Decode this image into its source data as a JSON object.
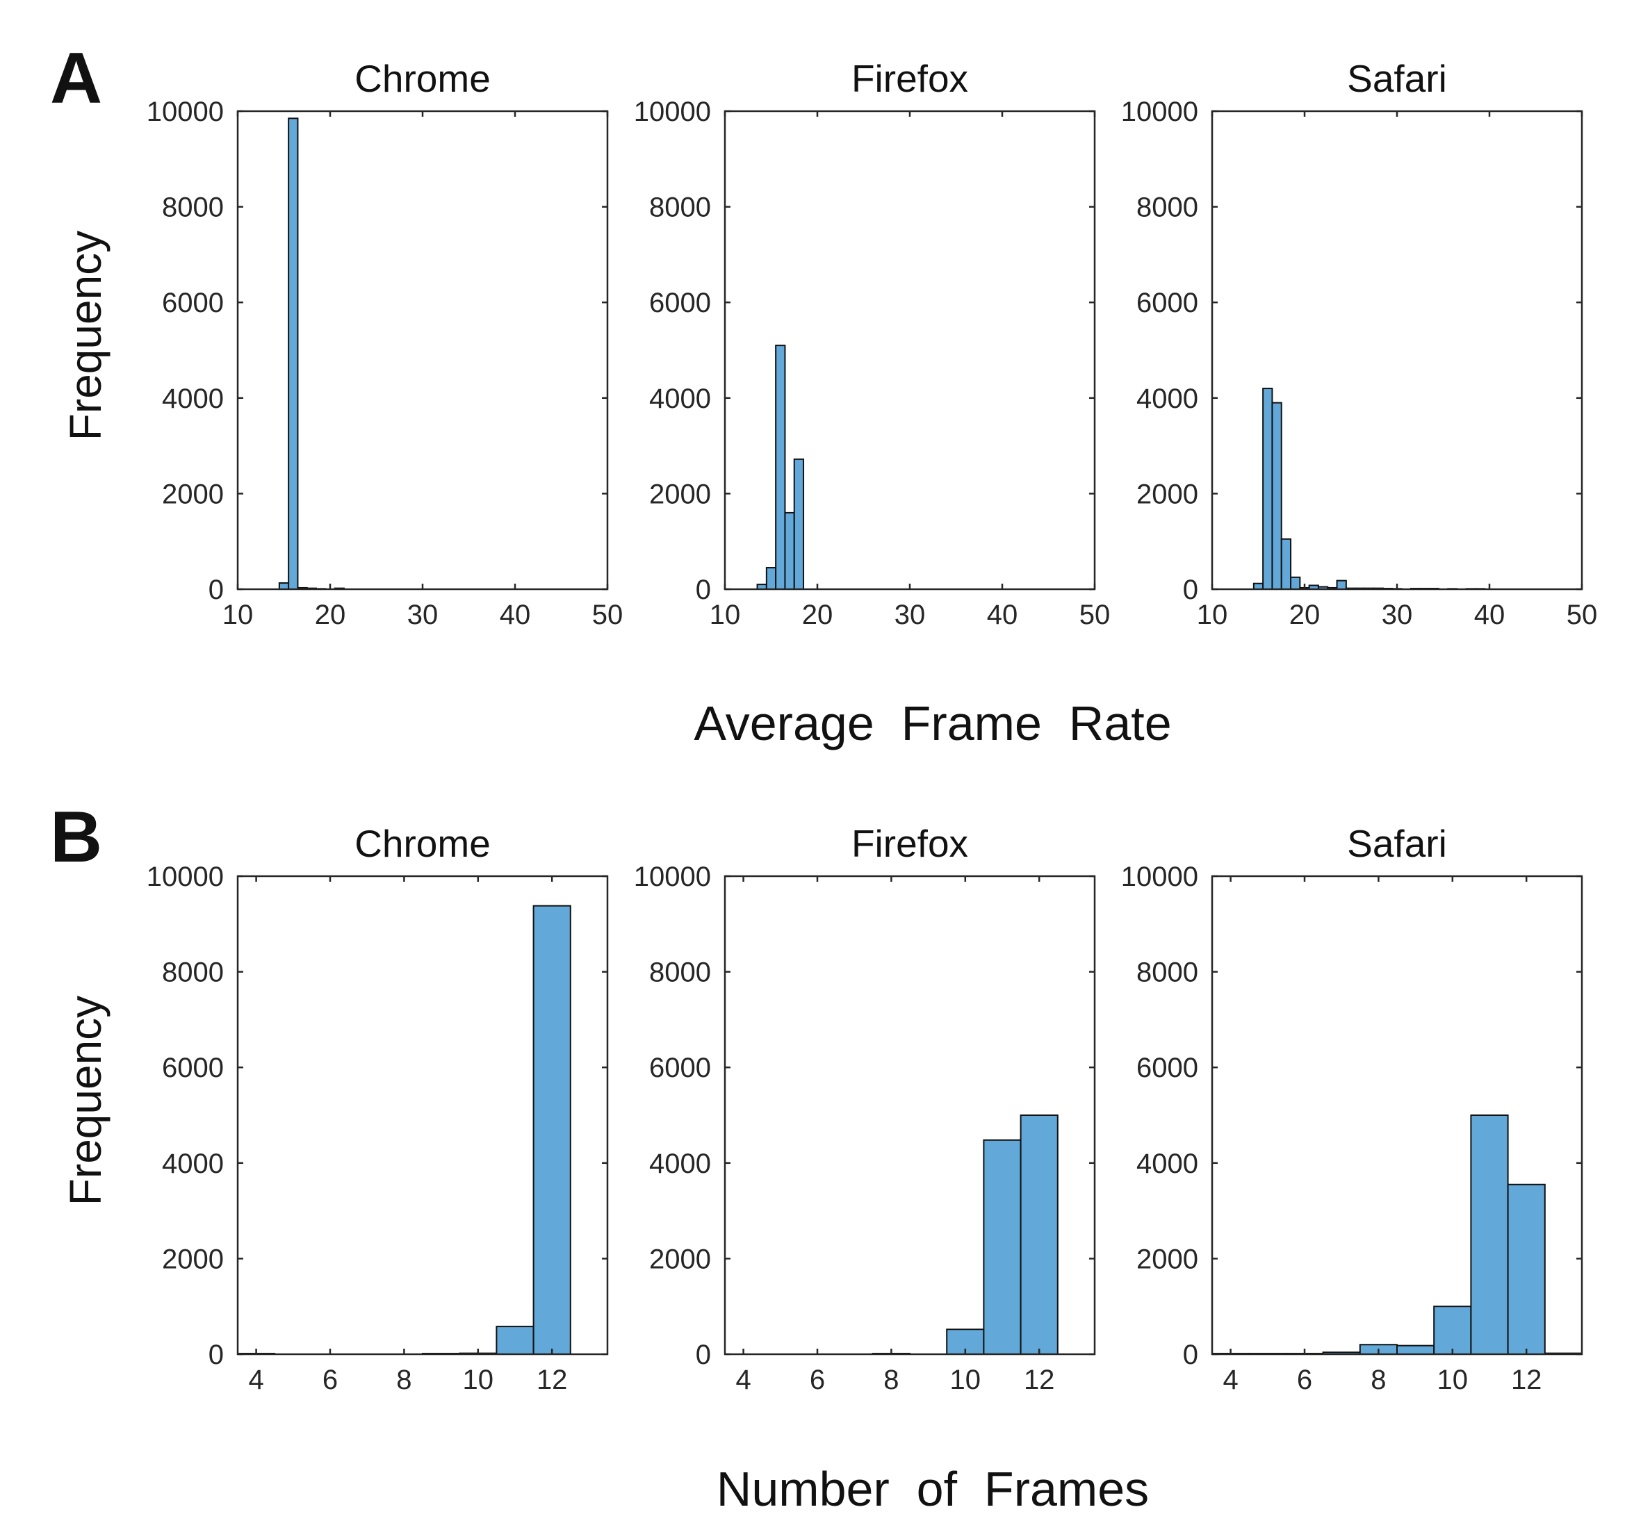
{
  "panels": [
    {
      "letter": "A",
      "ylabel": "Frequency",
      "xlabel": "Average  Frame  Rate"
    },
    {
      "letter": "B",
      "ylabel": "Frequency",
      "xlabel": "Number  of  Frames"
    }
  ],
  "colors": {
    "bar_fill": "#62a8d8",
    "bar_edge": "#111111",
    "axes": "#262626"
  },
  "chart_data": [
    {
      "type": "bar",
      "panel": "A",
      "title": "Chrome",
      "xlim": [
        10,
        50
      ],
      "ylim": [
        0,
        10000
      ],
      "xticks": [
        10,
        20,
        30,
        40,
        50
      ],
      "yticks": [
        0,
        2000,
        4000,
        6000,
        8000,
        10000
      ],
      "bin_width": 1,
      "bins": [
        [
          15,
          130
        ],
        [
          16,
          9850
        ],
        [
          17,
          30
        ],
        [
          18,
          20
        ],
        [
          19,
          10
        ],
        [
          21,
          20
        ]
      ]
    },
    {
      "type": "bar",
      "panel": "A",
      "title": "Firefox",
      "xlim": [
        10,
        50
      ],
      "ylim": [
        0,
        10000
      ],
      "xticks": [
        10,
        20,
        30,
        40,
        50
      ],
      "yticks": [
        0,
        2000,
        4000,
        6000,
        8000,
        10000
      ],
      "bin_width": 1,
      "bins": [
        [
          14,
          100
        ],
        [
          15,
          450
        ],
        [
          16,
          5100
        ],
        [
          17,
          1600
        ],
        [
          18,
          2720
        ]
      ]
    },
    {
      "type": "bar",
      "panel": "A",
      "title": "Safari",
      "xlim": [
        10,
        50
      ],
      "ylim": [
        0,
        10000
      ],
      "xticks": [
        10,
        20,
        30,
        40,
        50
      ],
      "yticks": [
        0,
        2000,
        4000,
        6000,
        8000,
        10000
      ],
      "bin_width": 1,
      "bins": [
        [
          15,
          120
        ],
        [
          16,
          4200
        ],
        [
          17,
          3900
        ],
        [
          18,
          1050
        ],
        [
          19,
          250
        ],
        [
          20,
          30
        ],
        [
          21,
          80
        ],
        [
          22,
          50
        ],
        [
          23,
          30
        ],
        [
          24,
          180
        ],
        [
          25,
          20
        ],
        [
          26,
          20
        ],
        [
          27,
          20
        ],
        [
          28,
          20
        ],
        [
          29,
          15
        ],
        [
          30,
          10
        ],
        [
          32,
          15
        ],
        [
          33,
          15
        ],
        [
          34,
          15
        ],
        [
          36,
          10
        ],
        [
          38,
          10
        ],
        [
          39,
          10
        ]
      ]
    },
    {
      "type": "bar",
      "panel": "B",
      "title": "Chrome",
      "xlim": [
        3.5,
        13.5
      ],
      "ylim": [
        0,
        10000
      ],
      "xticks": [
        4,
        6,
        8,
        10,
        12
      ],
      "yticks": [
        0,
        2000,
        4000,
        6000,
        8000,
        10000
      ],
      "bin_width": 1,
      "bins": [
        [
          4,
          15
        ],
        [
          9,
          15
        ],
        [
          10,
          20
        ],
        [
          11,
          580
        ],
        [
          12,
          9380
        ]
      ]
    },
    {
      "type": "bar",
      "panel": "B",
      "title": "Firefox",
      "xlim": [
        3.5,
        13.5
      ],
      "ylim": [
        0,
        10000
      ],
      "xticks": [
        4,
        6,
        8,
        10,
        12
      ],
      "yticks": [
        0,
        2000,
        4000,
        6000,
        8000,
        10000
      ],
      "bin_width": 1,
      "bins": [
        [
          8,
          15
        ],
        [
          10,
          520
        ],
        [
          11,
          4480
        ],
        [
          12,
          5000
        ]
      ]
    },
    {
      "type": "bar",
      "panel": "B",
      "title": "Safari",
      "xlim": [
        3.5,
        13.5
      ],
      "ylim": [
        0,
        10000
      ],
      "xticks": [
        4,
        6,
        8,
        10,
        12
      ],
      "yticks": [
        0,
        2000,
        4000,
        6000,
        8000,
        10000
      ],
      "bin_width": 1,
      "bins": [
        [
          4,
          15
        ],
        [
          5,
          15
        ],
        [
          6,
          15
        ],
        [
          7,
          40
        ],
        [
          8,
          200
        ],
        [
          9,
          180
        ],
        [
          10,
          1000
        ],
        [
          11,
          5000
        ],
        [
          12,
          3550
        ],
        [
          13,
          20
        ]
      ]
    }
  ]
}
